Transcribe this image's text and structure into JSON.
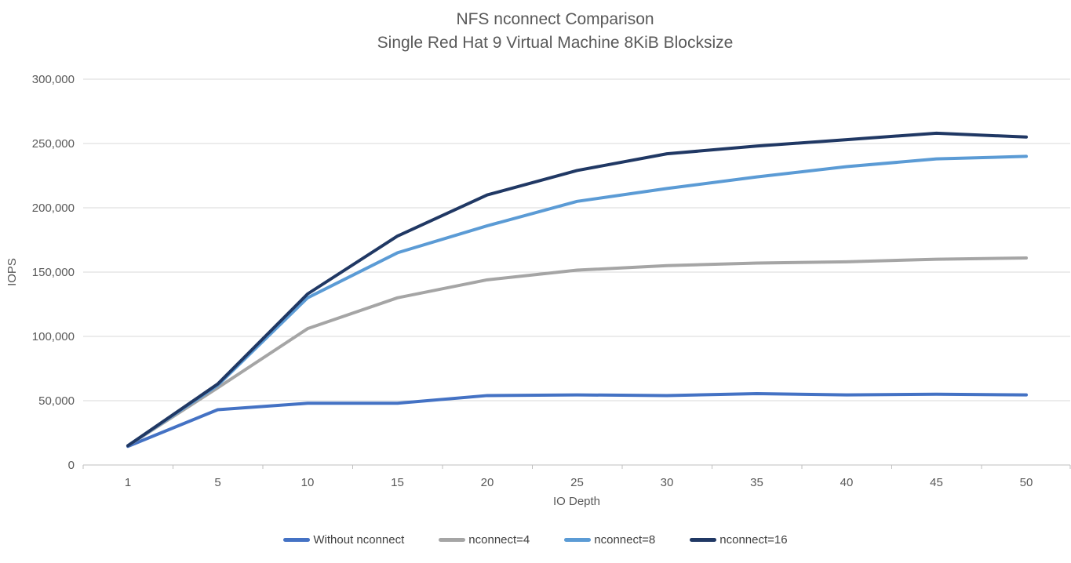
{
  "chart": {
    "title_line1": "NFS nconnect Comparison",
    "title_line2": "Single Red Hat 9 Virtual Machine 8KiB Blocksize",
    "y_tick_labels": [
      "0",
      "50,000",
      "100,000",
      "150,000",
      "200,000",
      "250,000",
      "300,000"
    ],
    "colors": {
      "gridline": "#d9d9d9",
      "axis_line": "#bfbfbf",
      "tick": "#bfbfbf",
      "label_text": "#595959"
    }
  },
  "chart_data": {
    "type": "line",
    "title": "NFS nconnect Comparison",
    "subtitle": "Single Red Hat 9 Virtual Machine 8KiB Blocksize",
    "xlabel": "IO Depth",
    "ylabel": "IOPS",
    "ylim": [
      0,
      300000
    ],
    "ystep": 50000,
    "grid": true,
    "legend_position": "bottom",
    "categories": [
      "1",
      "5",
      "10",
      "15",
      "20",
      "25",
      "30",
      "35",
      "40",
      "45",
      "50"
    ],
    "series": [
      {
        "name": "Without nconnect",
        "color": "#4472c4",
        "values": [
          14500,
          43000,
          48000,
          48000,
          54000,
          54500,
          54000,
          55500,
          54500,
          55000,
          54500
        ]
      },
      {
        "name": "nconnect=4",
        "color": "#a5a5a5",
        "values": [
          15000,
          60000,
          106000,
          130000,
          144000,
          151500,
          155000,
          157000,
          158000,
          160000,
          161000
        ]
      },
      {
        "name": "nconnect=8",
        "color": "#5b9bd5",
        "values": [
          15000,
          62000,
          130000,
          165000,
          186000,
          205000,
          215000,
          224000,
          232000,
          238000,
          240000
        ]
      },
      {
        "name": "nconnect=16",
        "color": "#203864",
        "values": [
          15000,
          63000,
          133000,
          178000,
          210000,
          229000,
          242000,
          248000,
          253000,
          258000,
          255000
        ]
      }
    ]
  }
}
